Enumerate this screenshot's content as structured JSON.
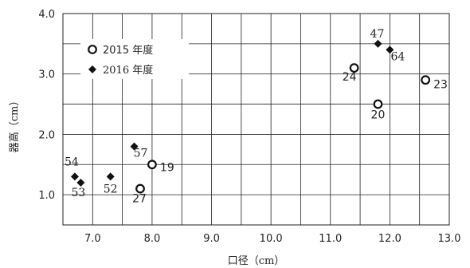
{
  "chart_data": {
    "type": "scatter",
    "xlabel": "口径（cm）",
    "ylabel": "器高（cm）",
    "xlim": [
      6.5,
      13.0
    ],
    "ylim": [
      0.5,
      4.0
    ],
    "x_ticks": [
      "7.0",
      "8.0",
      "9.0",
      "10.0",
      "11.0",
      "12.0",
      "13.0"
    ],
    "y_ticks": [
      "1.0",
      "2.0",
      "3.0",
      "4.0"
    ],
    "x_tick_values": [
      7.0,
      8.0,
      9.0,
      10.0,
      11.0,
      12.0,
      13.0
    ],
    "y_tick_values": [
      1.0,
      2.0,
      3.0,
      4.0
    ],
    "x_grid_step": 0.5,
    "y_grid_step": 0.5,
    "grid": true,
    "legend_position": "top-left",
    "series": [
      {
        "name": "2015 年度",
        "marker": "open-circle",
        "points": [
          {
            "id": "19",
            "x": 8.0,
            "y": 1.5
          },
          {
            "id": "27",
            "x": 7.8,
            "y": 1.1
          },
          {
            "id": "24",
            "x": 11.4,
            "y": 3.1
          },
          {
            "id": "20",
            "x": 11.8,
            "y": 2.5
          },
          {
            "id": "23",
            "x": 12.6,
            "y": 2.9
          }
        ]
      },
      {
        "name": "2016 年度",
        "marker": "filled-diamond",
        "points": [
          {
            "id": "57",
            "x": 7.7,
            "y": 1.8
          },
          {
            "id": "52",
            "x": 7.3,
            "y": 1.3
          },
          {
            "id": "54",
            "x": 6.7,
            "y": 1.3
          },
          {
            "id": "53",
            "x": 6.8,
            "y": 1.2
          },
          {
            "id": "47",
            "x": 11.8,
            "y": 3.5
          },
          {
            "id": "64",
            "x": 12.0,
            "y": 3.4
          }
        ]
      }
    ]
  }
}
